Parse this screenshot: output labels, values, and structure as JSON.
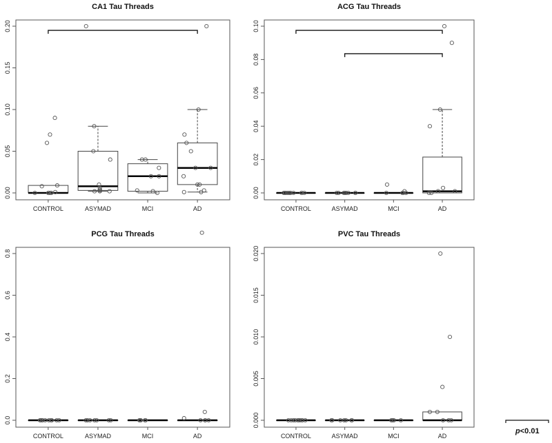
{
  "chart_data": [
    {
      "type": "boxplot",
      "title": "CA1 Tau Threads",
      "categories": [
        "CONTROL",
        "ASYMAD",
        "MCI",
        "AD"
      ],
      "ylim": [
        0,
        0.2
      ],
      "yticks": [
        "0.00",
        "0.05",
        "0.10",
        "0.15",
        "0.20"
      ],
      "ytick_values": [
        0,
        0.05,
        0.1,
        0.15,
        0.2
      ],
      "boxes": [
        {
          "low": 0,
          "q1": 0,
          "median": 0,
          "q3": 0.009,
          "high": 0.009
        },
        {
          "low": 0.002,
          "q1": 0.003,
          "median": 0.008,
          "q3": 0.05,
          "high": 0.08
        },
        {
          "low": 0,
          "q1": 0.002,
          "median": 0.02,
          "q3": 0.035,
          "high": 0.04
        },
        {
          "low": 0.001,
          "q1": 0.01,
          "median": 0.03,
          "q3": 0.06,
          "high": 0.1
        }
      ],
      "points": [
        [
          0.09,
          0.07,
          0.06,
          0.008,
          0.009,
          0.001,
          0,
          0,
          0,
          0,
          0,
          0
        ],
        [
          0.2,
          0.08,
          0.05,
          0.04,
          0.01,
          0.006,
          0.004,
          0.003,
          0.002,
          0.002,
          0.002
        ],
        [
          0.04,
          0.04,
          0.03,
          0.02,
          0.02,
          0.002,
          0.003,
          0
        ],
        [
          0.2,
          0.1,
          0.07,
          0.06,
          0.05,
          0.03,
          0.03,
          0.02,
          0.01,
          0.01,
          0.003,
          0.001,
          0.001
        ]
      ],
      "brackets": [
        {
          "from": 0,
          "to": 3,
          "y": 0.195
        }
      ]
    },
    {
      "type": "boxplot",
      "title": "ACG Tau Threads",
      "categories": [
        "CONTROL",
        "ASYMAD",
        "MCI",
        "AD"
      ],
      "ylim": [
        0,
        0.1
      ],
      "yticks": [
        "0.00",
        "0.02",
        "0.04",
        "0.06",
        "0.08",
        "0.10"
      ],
      "ytick_values": [
        0,
        0.02,
        0.04,
        0.06,
        0.08,
        0.1
      ],
      "boxes": [
        {
          "low": 0,
          "q1": 0,
          "median": 0,
          "q3": 0,
          "high": 0
        },
        {
          "low": 0,
          "q1": 0,
          "median": 0,
          "q3": 0,
          "high": 0
        },
        {
          "low": 0,
          "q1": 0,
          "median": 0,
          "q3": 0,
          "high": 0
        },
        {
          "low": 0,
          "q1": 0,
          "median": 0.001,
          "q3": 0.0215,
          "high": 0.05
        }
      ],
      "points": [
        [
          0,
          0,
          0,
          0,
          0,
          0,
          0,
          0,
          0,
          0,
          0
        ],
        [
          0,
          0,
          0,
          0,
          0,
          0,
          0,
          0
        ],
        [
          0.005,
          0.001,
          0,
          0,
          0,
          0
        ],
        [
          0.1,
          0.09,
          0.05,
          0.04,
          0.003,
          0.001,
          0.001,
          0,
          0
        ]
      ],
      "brackets": [
        {
          "from": 0,
          "to": 3,
          "y": 0.0975
        },
        {
          "from": 1,
          "to": 3,
          "y": 0.0835
        }
      ]
    },
    {
      "type": "boxplot",
      "title": "PCG Tau Threads",
      "categories": [
        "CONTROL",
        "ASYMAD",
        "MCI",
        "AD"
      ],
      "ylim": [
        0,
        0.9
      ],
      "yticks": [
        "0.0",
        "0.2",
        "0.4",
        "0.6",
        "0.8"
      ],
      "ytick_values": [
        0,
        0.2,
        0.4,
        0.6,
        0.8
      ],
      "boxes": [
        {
          "low": 0,
          "q1": 0,
          "median": 0,
          "q3": 0,
          "high": 0
        },
        {
          "low": 0,
          "q1": 0,
          "median": 0,
          "q3": 0,
          "high": 0
        },
        {
          "low": 0,
          "q1": 0,
          "median": 0,
          "q3": 0,
          "high": 0
        },
        {
          "low": 0,
          "q1": 0,
          "median": 0,
          "q3": 0,
          "high": 0
        }
      ],
      "points": [
        [
          0,
          0,
          0,
          0,
          0,
          0,
          0,
          0,
          0,
          0
        ],
        [
          0,
          0,
          0,
          0,
          0,
          0,
          0
        ],
        [
          0,
          0,
          0,
          0,
          0
        ],
        [
          0.9,
          0.04,
          0.01,
          0,
          0,
          0,
          0
        ]
      ],
      "brackets": []
    },
    {
      "type": "boxplot",
      "title": "PVC Tau Threads",
      "categories": [
        "CONTROL",
        "ASYMAD",
        "MCI",
        "AD"
      ],
      "ylim": [
        0,
        0.02
      ],
      "yticks": [
        "0.000",
        "0.005",
        "0.010",
        "0.015",
        "0.020"
      ],
      "ytick_values": [
        0,
        0.005,
        0.01,
        0.015,
        0.02
      ],
      "boxes": [
        {
          "low": 0,
          "q1": 0,
          "median": 0,
          "q3": 0,
          "high": 0
        },
        {
          "low": 0,
          "q1": 0,
          "median": 0,
          "q3": 0,
          "high": 0
        },
        {
          "low": 0,
          "q1": 0,
          "median": 0,
          "q3": 0,
          "high": 0
        },
        {
          "low": 0,
          "q1": 0,
          "median": 0,
          "q3": 0.001,
          "high": 0.001
        }
      ],
      "points": [
        [
          0,
          0,
          0,
          0,
          0,
          0,
          0,
          0,
          0,
          0
        ],
        [
          0,
          0,
          0,
          0,
          0,
          0,
          0
        ],
        [
          0,
          0,
          0,
          0
        ],
        [
          0.02,
          0.01,
          0.004,
          0.001,
          0.001,
          0,
          0,
          0
        ]
      ],
      "brackets": []
    }
  ],
  "legend": {
    "p_label": "p",
    "threshold_label": "<0.01"
  }
}
